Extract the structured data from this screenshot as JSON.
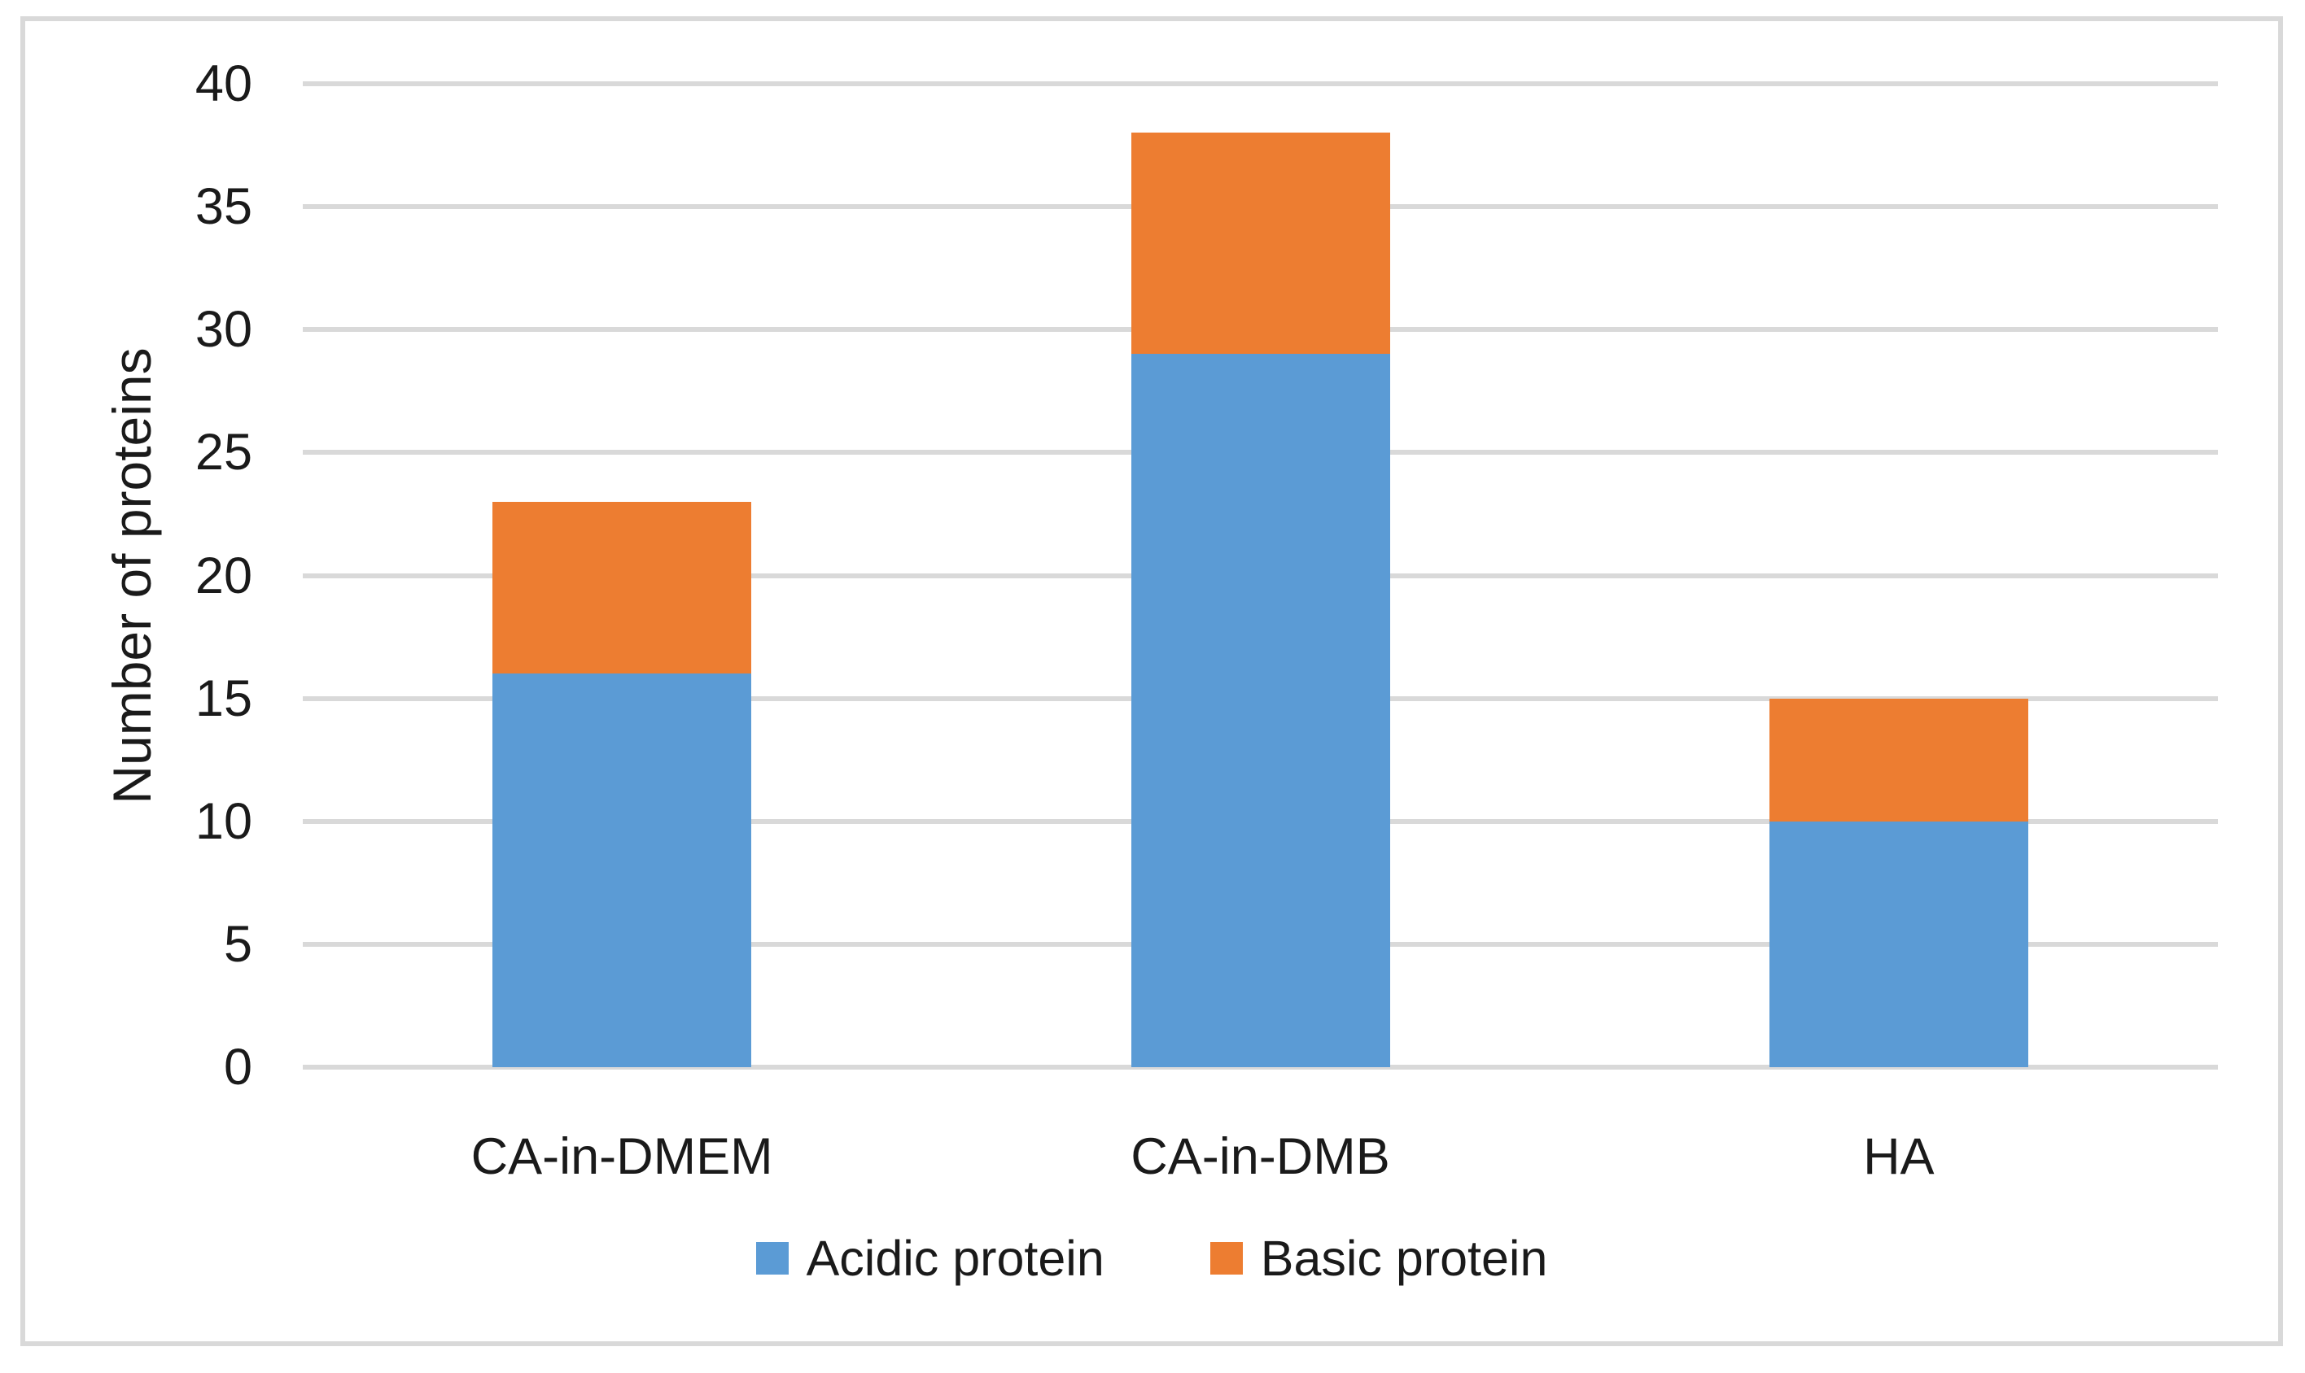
{
  "figure": {
    "background": "#ffffff",
    "border_color": "#d9d9d9",
    "text_color": "#1a1a1a"
  },
  "chart_data": {
    "type": "bar",
    "stacked": true,
    "title": "",
    "xlabel": "",
    "ylabel": "Number of proteins",
    "categories": [
      "CA-in-DMEM",
      "CA-in-DMB",
      "HA"
    ],
    "series": [
      {
        "name": "Acidic protein",
        "color": "#5B9BD5",
        "values": [
          16,
          29,
          10
        ]
      },
      {
        "name": "Basic protein",
        "color": "#ED7D31",
        "values": [
          7,
          9,
          5
        ]
      }
    ],
    "stack_totals": [
      23,
      38,
      15
    ],
    "ylim": [
      0,
      40
    ],
    "yticks": [
      0,
      5,
      10,
      15,
      20,
      25,
      30,
      35,
      40
    ],
    "grid": true,
    "gridline_color": "#d9d9d9",
    "legend_position": "bottom"
  }
}
